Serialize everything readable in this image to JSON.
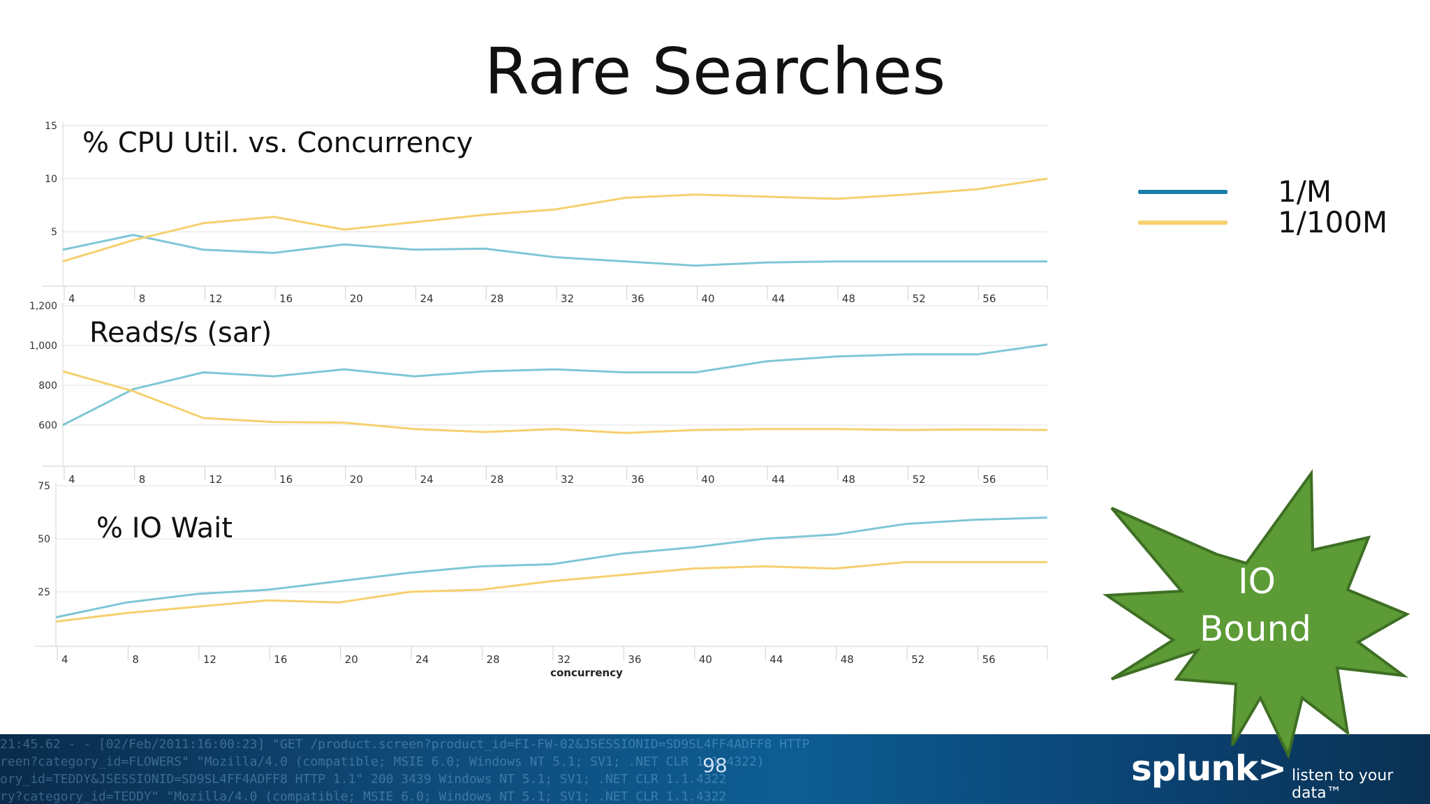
{
  "slide": {
    "title": "Rare Searches",
    "page_number": "98"
  },
  "legend": [
    {
      "label": "1/M",
      "color": "#1a7faa"
    },
    {
      "label": "1/100M",
      "color": "#f5d06e"
    }
  ],
  "callout": {
    "line1": "IO",
    "line2": "Bound",
    "color": "#5c9b35"
  },
  "footer": {
    "brand_logo": "splunk>",
    "tagline": "listen to your data™",
    "log_lines": [
      "21:45.62 - - [02/Feb/2011:16:00:23] \"GET /product.screen?product_id=FI-FW-02&JSESSIONID=SD9SL4FF4ADFF8 HTTP",
      "reen?category_id=FLOWERS\" \"Mozilla/4.0 (compatible; MSIE 6.0; Windows NT 5.1; SV1; .NET CLR 1.1.4322)",
      "ory_id=TEDDY&JSESSIONID=SD9SL4FF4ADFF8 HTTP 1.1\" 200 3439 Windows NT 5.1; SV1; .NET CLR 1.1.4322",
      "ry?category_id=TEDDY\" \"Mozilla/4.0 (compatible; MSIE 6.0; Windows NT 5.1; SV1; .NET CLR 1.1.4322"
    ]
  },
  "chart_data": [
    {
      "type": "line",
      "title": "% CPU Util. vs. Concurrency",
      "x": [
        2,
        8,
        12,
        16,
        20,
        24,
        28,
        32,
        36,
        40,
        44,
        48,
        52,
        56,
        60
      ],
      "x_ticks": [
        4,
        8,
        12,
        16,
        20,
        24,
        28,
        32,
        36,
        40,
        44,
        48,
        52,
        56
      ],
      "y_ticks": [
        5,
        10,
        15
      ],
      "ylim": [
        0,
        15
      ],
      "series": [
        {
          "name": "1/M",
          "color": "#7fc6d6",
          "values": [
            3.3,
            4.7,
            3.3,
            3.0,
            3.8,
            3.3,
            3.4,
            2.6,
            2.2,
            1.8,
            2.1,
            2.2,
            2.2,
            2.2,
            2.2
          ]
        },
        {
          "name": "1/100M",
          "color": "#f5d06e",
          "values": [
            2.2,
            4.2,
            5.8,
            6.4,
            5.2,
            5.9,
            6.6,
            7.1,
            8.2,
            8.5,
            8.3,
            8.1,
            8.5,
            9.0,
            10.0
          ]
        }
      ]
    },
    {
      "type": "line",
      "title": "Reads/s (sar)",
      "x": [
        2,
        8,
        12,
        16,
        20,
        24,
        28,
        32,
        36,
        40,
        44,
        48,
        52,
        56,
        60
      ],
      "x_ticks": [
        4,
        8,
        12,
        16,
        20,
        24,
        28,
        32,
        36,
        40,
        44,
        48,
        52,
        56
      ],
      "y_ticks": [
        600,
        800,
        1000,
        1200
      ],
      "ylim": [
        400,
        1200
      ],
      "series": [
        {
          "name": "1/M",
          "color": "#7fc6d6",
          "values": [
            600,
            780,
            865,
            845,
            880,
            845,
            870,
            880,
            865,
            865,
            920,
            945,
            955,
            955,
            1005
          ]
        },
        {
          "name": "1/100M",
          "color": "#f5d06e",
          "values": [
            870,
            770,
            635,
            615,
            612,
            580,
            565,
            580,
            560,
            575,
            580,
            580,
            575,
            578,
            575
          ]
        }
      ]
    },
    {
      "type": "line",
      "title": "% IO Wait",
      "xlabel": "concurrency",
      "x": [
        4,
        8,
        12,
        16,
        20,
        24,
        28,
        32,
        36,
        40,
        44,
        48,
        52,
        56,
        60
      ],
      "x_ticks": [
        4,
        8,
        12,
        16,
        20,
        24,
        28,
        32,
        36,
        40,
        44,
        48,
        52,
        56
      ],
      "y_ticks": [
        25,
        50,
        75
      ],
      "ylim": [
        0,
        75
      ],
      "series": [
        {
          "name": "1/M",
          "color": "#7fc6d6",
          "values": [
            13,
            20,
            24,
            26,
            30,
            34,
            37,
            38,
            43,
            46,
            50,
            52,
            57,
            59,
            60
          ]
        },
        {
          "name": "1/100M",
          "color": "#f5d06e",
          "values": [
            11,
            15,
            18,
            21,
            20,
            25,
            26,
            30,
            33,
            36,
            37,
            36,
            39,
            39,
            39
          ]
        }
      ]
    }
  ]
}
